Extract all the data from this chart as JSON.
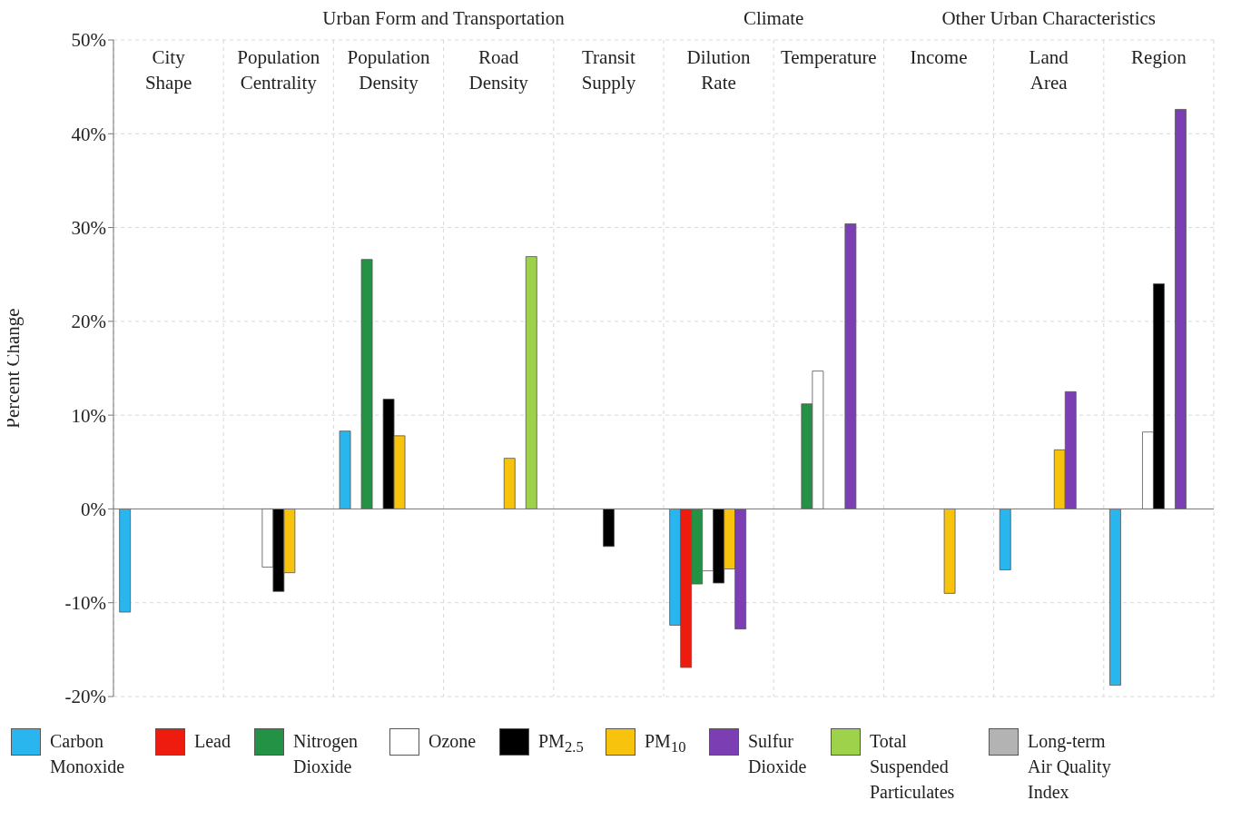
{
  "chart_data": {
    "type": "bar",
    "ylabel": "Percent Change",
    "annotations": [
      "Urban Form and Transportation",
      "Climate",
      "Other Urban Characteristics"
    ],
    "categories": [
      "City Shape",
      "Population Centrality",
      "Population Density",
      "Road Density",
      "Transit Supply",
      "Dilution Rate",
      "Temperature",
      "Income",
      "Land Area",
      "Region"
    ],
    "series": [
      {
        "name": "Carbon Monoxide",
        "color": "#29b6ef",
        "values": [
          -11,
          null,
          8.3,
          null,
          null,
          -12.4,
          null,
          null,
          -6.5,
          -18.8
        ]
      },
      {
        "name": "Lead",
        "color": "#ee1c0e",
        "values": [
          null,
          null,
          null,
          null,
          null,
          -16.9,
          null,
          null,
          null,
          null
        ]
      },
      {
        "name": "Nitrogen Dioxide",
        "color": "#239244",
        "values": [
          null,
          null,
          26.6,
          null,
          null,
          -8,
          11.2,
          null,
          null,
          null
        ]
      },
      {
        "name": "Ozone",
        "color": "#ffffff",
        "values": [
          null,
          -6.2,
          null,
          null,
          null,
          -6.6,
          14.7,
          null,
          null,
          8.2
        ]
      },
      {
        "name": "PM$_{2.5}$",
        "color": "#000000",
        "values": [
          null,
          -8.8,
          11.7,
          null,
          -4,
          -7.9,
          null,
          null,
          null,
          24
        ]
      },
      {
        "name": "PM$_{10}$",
        "color": "#f8c30c",
        "values": [
          null,
          -6.8,
          7.8,
          5.4,
          null,
          -6.4,
          null,
          -9,
          6.3,
          null
        ]
      },
      {
        "name": "Sulfur Dioxide",
        "color": "#7c3fb3",
        "values": [
          null,
          null,
          null,
          null,
          null,
          -12.8,
          30.4,
          null,
          12.5,
          42.6
        ]
      },
      {
        "name": "Total Suspended Particulates",
        "color": "#9dd24a",
        "values": [
          null,
          null,
          null,
          26.9,
          null,
          null,
          null,
          null,
          null,
          null
        ]
      },
      {
        "name": "Long-term Air Quality Index",
        "color": "#b3b3b3",
        "values": [
          null,
          null,
          null,
          null,
          null,
          null,
          null,
          null,
          null,
          null
        ]
      }
    ],
    "ylim": [
      -20,
      50
    ],
    "yticks": [
      {
        "value": -20,
        "label": "-20%"
      },
      {
        "value": -10,
        "label": "-10%"
      },
      {
        "value": 0,
        "label": "0%"
      },
      {
        "value": 10,
        "label": "10%"
      },
      {
        "value": 20,
        "label": "20%"
      },
      {
        "value": 30,
        "label": "30%"
      },
      {
        "value": 40,
        "label": "40%"
      },
      {
        "value": 50,
        "label": "50%"
      }
    ],
    "grid": true,
    "legend": "bottom"
  }
}
